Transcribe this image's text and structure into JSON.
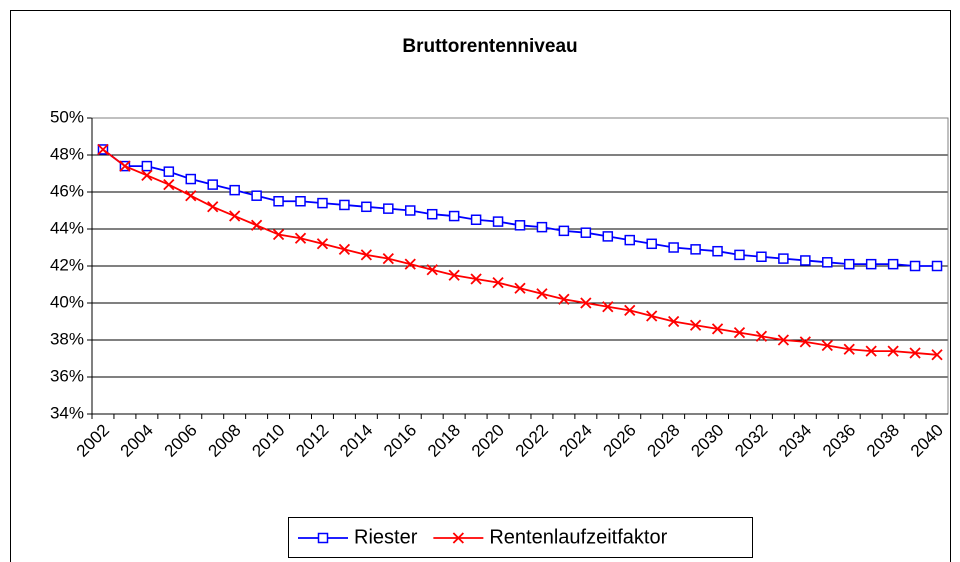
{
  "chart_data": {
    "type": "line",
    "title": "Bruttorentenniveau",
    "categories": [
      "2002",
      null,
      "2004",
      null,
      "2006",
      null,
      "2008",
      null,
      "2010",
      null,
      "2012",
      null,
      "2014",
      null,
      "2016",
      null,
      "2018",
      null,
      "2020",
      null,
      "2022",
      null,
      "2024",
      null,
      "2026",
      null,
      "2028",
      null,
      "2030",
      null,
      "2032",
      null,
      "2034",
      null,
      "2036",
      null,
      "2038",
      null,
      "2040"
    ],
    "series": [
      {
        "name": "Riester",
        "color": "#0000ff",
        "marker": "square",
        "values": [
          48.3,
          47.4,
          47.4,
          47.1,
          46.7,
          46.4,
          46.1,
          45.8,
          45.5,
          45.5,
          45.4,
          45.3,
          45.2,
          45.1,
          45.0,
          44.8,
          44.7,
          44.5,
          44.4,
          44.2,
          44.1,
          43.9,
          43.8,
          43.6,
          43.4,
          43.2,
          43.0,
          42.9,
          42.8,
          42.6,
          42.5,
          42.4,
          42.3,
          42.2,
          42.1,
          42.1,
          42.1,
          42.0,
          42.0
        ]
      },
      {
        "name": "Rentenlaufzeitfaktor",
        "color": "#ff0000",
        "marker": "x",
        "values": [
          48.3,
          47.4,
          46.9,
          46.4,
          45.8,
          45.2,
          44.7,
          44.2,
          43.7,
          43.5,
          43.2,
          42.9,
          42.6,
          42.4,
          42.1,
          41.8,
          41.5,
          41.3,
          41.1,
          40.8,
          40.5,
          40.2,
          40.0,
          39.8,
          39.6,
          39.3,
          39.0,
          38.8,
          38.6,
          38.4,
          38.2,
          38.0,
          37.9,
          37.7,
          37.5,
          37.4,
          37.4,
          37.3,
          37.2
        ]
      }
    ],
    "ylim": [
      34,
      50
    ],
    "yticks": [
      {
        "value": 34,
        "label": "34%"
      },
      {
        "value": 36,
        "label": "36%"
      },
      {
        "value": 38,
        "label": "38%"
      },
      {
        "value": 40,
        "label": "40%"
      },
      {
        "value": 42,
        "label": "42%"
      },
      {
        "value": 44,
        "label": "44%"
      },
      {
        "value": 46,
        "label": "46%"
      },
      {
        "value": 48,
        "label": "48%"
      },
      {
        "value": 50,
        "label": "50%"
      }
    ],
    "grid": true,
    "legend": "bottom"
  }
}
